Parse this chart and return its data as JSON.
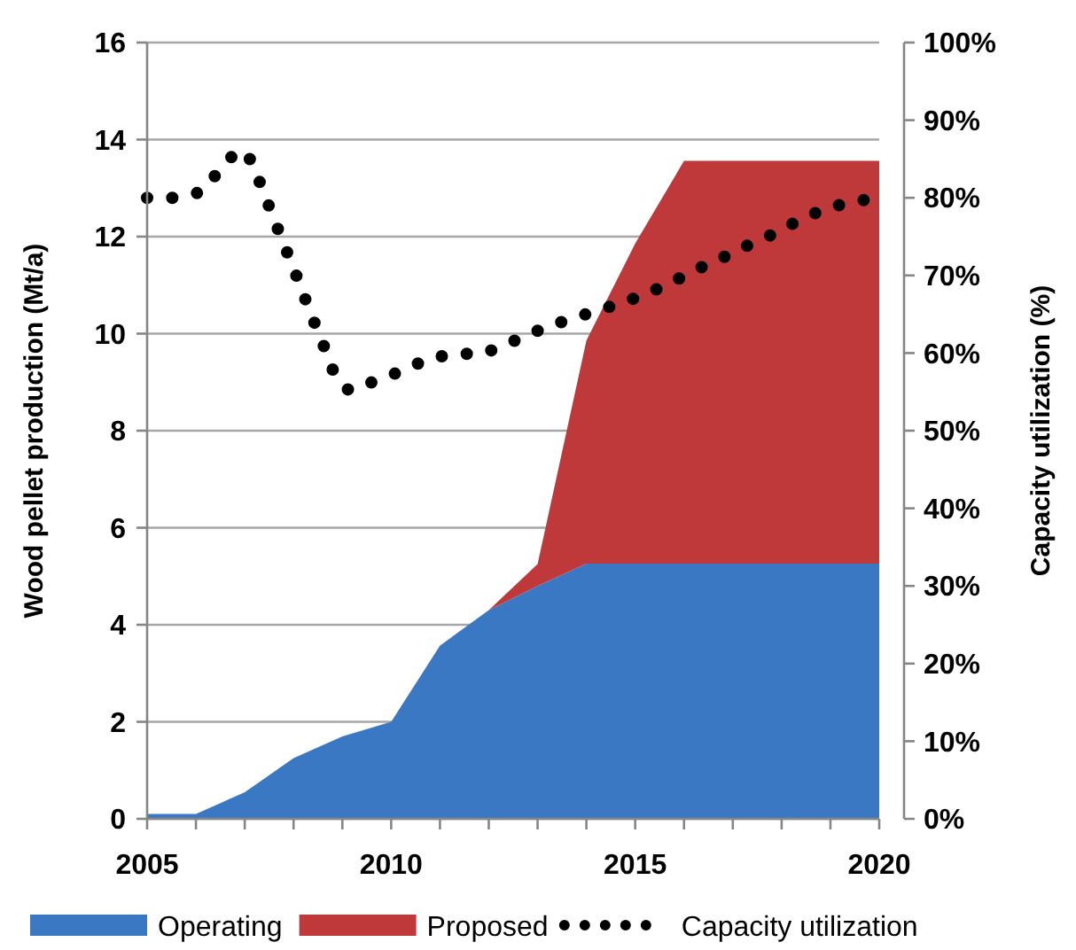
{
  "chart_data": {
    "type": "area",
    "stacked": true,
    "xlabel": null,
    "ylabel": "Wood pellet production (Mt/a)",
    "y2label": "Capacity utilization (%)",
    "x": [
      2005,
      2006,
      2007,
      2008,
      2009,
      2010,
      2011,
      2012,
      2013,
      2014,
      2015,
      2016,
      2017,
      2018,
      2019,
      2020
    ],
    "series": [
      {
        "name": "Operating",
        "color": "#3b78c4",
        "values": [
          0.1,
          0.1,
          0.55,
          1.25,
          1.7,
          2.0,
          3.57,
          4.3,
          4.8,
          5.26,
          5.26,
          5.26,
          5.26,
          5.26,
          5.26,
          5.26
        ]
      },
      {
        "name": "Proposed",
        "color": "#c0393a",
        "values": [
          0,
          0,
          0,
          0,
          0,
          0,
          0,
          0,
          0.45,
          4.6,
          6.6,
          8.3,
          8.3,
          8.3,
          8.3,
          8.3
        ]
      },
      {
        "name": "Capacity utilization",
        "type": "line",
        "axis": "y2",
        "color": "#000000",
        "line_style": "dotted",
        "x": [
          2005,
          2005.56,
          2006.09,
          2006.47,
          2006.86,
          2007.14,
          2007.35,
          2007.56,
          2007.77,
          2007.99,
          2008.2,
          2008.41,
          2008.62,
          2008.83,
          2009.13,
          2009.68,
          2010.22,
          2010.77,
          2011.31,
          2011.88,
          2012.42,
          2012.97,
          2013.49,
          2014.04,
          2014.6,
          2015.14,
          2015.68,
          2016.2,
          2016.73,
          2017.25,
          2017.78,
          2018.3,
          2018.82,
          2019.37,
          2020
        ],
        "values": [
          80,
          80,
          80.7,
          83.4,
          86.2,
          84.8,
          81.3,
          77.9,
          74.5,
          71.1,
          67.6,
          64.2,
          60.9,
          57.4,
          55.2,
          56.4,
          57.7,
          59.3,
          59.9,
          59.9,
          61.3,
          62.8,
          64.0,
          65.1,
          66.2,
          67.4,
          68.9,
          70.6,
          72.1,
          73.7,
          75.2,
          76.9,
          78.4,
          79.4,
          80
        ]
      }
    ],
    "xlim": [
      2005,
      2020
    ],
    "xticks": [
      2005,
      {
        "value": 2006,
        "label": null
      },
      {
        "value": 2007,
        "label": null
      },
      {
        "value": 2008,
        "label": null
      },
      {
        "value": 2009,
        "label": null
      },
      2010,
      {
        "value": 2011,
        "label": null
      },
      {
        "value": 2012,
        "label": null
      },
      {
        "value": 2013,
        "label": null
      },
      {
        "value": 2014,
        "label": null
      },
      2015,
      {
        "value": 2016,
        "label": null
      },
      {
        "value": 2017,
        "label": null
      },
      {
        "value": 2018,
        "label": null
      },
      {
        "value": 2019,
        "label": null
      },
      2020
    ],
    "ylim": [
      0,
      16
    ],
    "yticks": [
      0,
      2,
      4,
      6,
      8,
      10,
      12,
      14,
      16
    ],
    "y2lim": [
      0,
      100
    ],
    "y2ticks": [
      {
        "value": 0,
        "label": "0%"
      },
      {
        "value": 10,
        "label": "10%"
      },
      {
        "value": 20,
        "label": "20%"
      },
      {
        "value": 30,
        "label": "30%"
      },
      {
        "value": 40,
        "label": "40%"
      },
      {
        "value": 50,
        "label": "50%"
      },
      {
        "value": 60,
        "label": "60%"
      },
      {
        "value": 70,
        "label": "70%"
      },
      {
        "value": 80,
        "label": "80%"
      },
      {
        "value": 90,
        "label": "90%"
      },
      {
        "value": 100,
        "label": "100%"
      }
    ],
    "grid": "y",
    "legend": "bottom",
    "marker": "none"
  }
}
